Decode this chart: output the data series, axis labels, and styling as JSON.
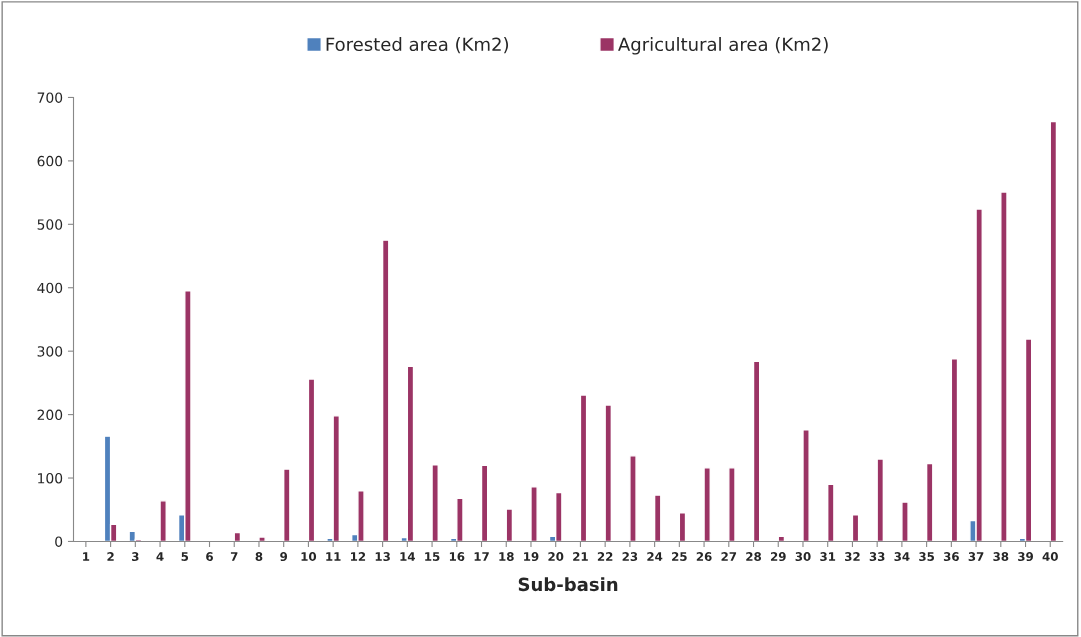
{
  "chart_data": {
    "type": "bar",
    "xlabel": "Sub-basin",
    "categories": [
      "1",
      "2",
      "3",
      "4",
      "5",
      "6",
      "7",
      "8",
      "9",
      "10",
      "11",
      "12",
      "13",
      "14",
      "15",
      "16",
      "17",
      "18",
      "19",
      "20",
      "21",
      "22",
      "23",
      "24",
      "25",
      "26",
      "27",
      "28",
      "29",
      "30",
      "31",
      "32",
      "33",
      "34",
      "35",
      "36",
      "37",
      "38",
      "39",
      "40"
    ],
    "series": [
      {
        "name": "Forested area (Km2)",
        "color": "#4f81bd",
        "values": [
          null,
          166,
          16,
          null,
          42,
          null,
          null,
          1,
          null,
          null,
          5,
          11,
          null,
          6,
          null,
          5,
          null,
          null,
          null,
          8,
          null,
          null,
          null,
          null,
          null,
          null,
          null,
          null,
          null,
          null,
          null,
          null,
          null,
          null,
          null,
          null,
          33,
          null,
          5,
          null
        ]
      },
      {
        "name": "Agricultural area (Km2)",
        "color": "#9b3465",
        "values": [
          1,
          27,
          3,
          64,
          395,
          1,
          14,
          7,
          114,
          256,
          198,
          80,
          475,
          276,
          121,
          68,
          120,
          51,
          86,
          77,
          231,
          215,
          135,
          73,
          45,
          116,
          116,
          284,
          8,
          176,
          90,
          42,
          130,
          62,
          123,
          288,
          524,
          551,
          319,
          662
        ]
      }
    ],
    "ylim": [
      0,
      700
    ],
    "yticks": [
      0,
      100,
      200,
      300,
      400,
      500,
      600,
      700
    ],
    "grid": false,
    "legend": "top"
  }
}
